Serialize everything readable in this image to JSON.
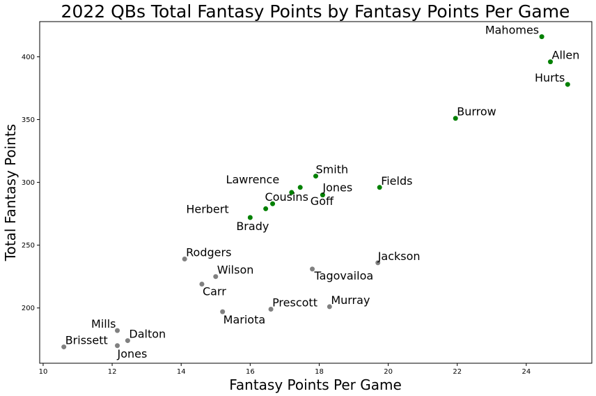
{
  "chart_data": {
    "type": "scatter",
    "title": "2022 QBs Total Fantasy Points by Fantasy Points Per Game",
    "xlabel": "Fantasy Points Per Game",
    "ylabel": "Total Fantasy Points",
    "xlim": [
      9.9,
      25.9
    ],
    "ylim": [
      156,
      428
    ],
    "xticks": [
      10,
      12,
      14,
      16,
      18,
      20,
      22,
      24
    ],
    "yticks": [
      200,
      250,
      300,
      350,
      400
    ],
    "grid": false,
    "colors": {
      "green": "#008000",
      "gray": "#808080"
    },
    "points": [
      {
        "label": "Mahomes",
        "x": 24.45,
        "y": 416,
        "color": "green",
        "anchor": "end",
        "ldx": -4,
        "ldy": -4
      },
      {
        "label": "Allen",
        "x": 24.7,
        "y": 396,
        "color": "green",
        "anchor": "start",
        "ldx": 2,
        "ldy": -4
      },
      {
        "label": "Hurts",
        "x": 25.2,
        "y": 378,
        "color": "green",
        "anchor": "end",
        "ldx": -4,
        "ldy": -4
      },
      {
        "label": "Burrow",
        "x": 21.95,
        "y": 351,
        "color": "green",
        "anchor": "start",
        "ldx": 2,
        "ldy": -4
      },
      {
        "label": "Smith",
        "x": 17.9,
        "y": 305,
        "color": "green",
        "anchor": "start",
        "ldx": 0,
        "ldy": -4
      },
      {
        "label": "Fields",
        "x": 19.75,
        "y": 296,
        "color": "green",
        "anchor": "start",
        "ldx": 2,
        "ldy": -4
      },
      {
        "label": "Lawrence",
        "x": 17.45,
        "y": 296,
        "color": "green",
        "anchor": "end",
        "ldx": -30,
        "ldy": -6
      },
      {
        "label": "Jones",
        "x": 18.1,
        "y": 290,
        "color": "green",
        "anchor": "start",
        "ldx": 0,
        "ldy": -5
      },
      {
        "label": "Goff",
        "x": 17.2,
        "y": 292,
        "color": "green",
        "anchor": "start",
        "ldx": 27,
        "ldy": 18
      },
      {
        "label": "Cousins",
        "x": 16.65,
        "y": 283,
        "color": "green",
        "anchor": "start",
        "ldx": -11,
        "ldy": -4
      },
      {
        "label": "Herbert",
        "x": 16.45,
        "y": 279,
        "color": "green",
        "anchor": "end",
        "ldx": -53,
        "ldy": 6
      },
      {
        "label": "Brady",
        "x": 16.0,
        "y": 272,
        "color": "green",
        "anchor": "start",
        "ldx": -20,
        "ldy": 18
      },
      {
        "label": "Rodgers",
        "x": 14.1,
        "y": 239,
        "color": "gray",
        "anchor": "start",
        "ldx": 2,
        "ldy": -4
      },
      {
        "label": "Jackson",
        "x": 19.7,
        "y": 236,
        "color": "gray",
        "anchor": "start",
        "ldx": 0,
        "ldy": -4
      },
      {
        "label": "Tagovailoa",
        "x": 17.8,
        "y": 231,
        "color": "gray",
        "anchor": "start",
        "ldx": 3,
        "ldy": 15
      },
      {
        "label": "Wilson",
        "x": 15.0,
        "y": 225,
        "color": "gray",
        "anchor": "start",
        "ldx": 2,
        "ldy": -4
      },
      {
        "label": "Carr",
        "x": 14.6,
        "y": 219,
        "color": "gray",
        "anchor": "start",
        "ldx": 1,
        "ldy": 16
      },
      {
        "label": "Murray",
        "x": 18.3,
        "y": 201,
        "color": "gray",
        "anchor": "start",
        "ldx": 2,
        "ldy": -4
      },
      {
        "label": "Prescott",
        "x": 16.6,
        "y": 199,
        "color": "gray",
        "anchor": "start",
        "ldx": 2,
        "ldy": -4
      },
      {
        "label": "Mariota",
        "x": 15.2,
        "y": 197,
        "color": "gray",
        "anchor": "start",
        "ldx": 1,
        "ldy": 17
      },
      {
        "label": "Mills",
        "x": 12.15,
        "y": 182,
        "color": "gray",
        "anchor": "end",
        "ldx": -2,
        "ldy": -4
      },
      {
        "label": "Dalton",
        "x": 12.45,
        "y": 174,
        "color": "gray",
        "anchor": "start",
        "ldx": 2,
        "ldy": -4
      },
      {
        "label": "Brissett",
        "x": 10.6,
        "y": 169,
        "color": "gray",
        "anchor": "start",
        "ldx": 2,
        "ldy": -4
      },
      {
        "label": "Jones",
        "x": 12.15,
        "y": 170,
        "color": "gray",
        "anchor": "start",
        "ldx": 0,
        "ldy": 17
      }
    ]
  }
}
